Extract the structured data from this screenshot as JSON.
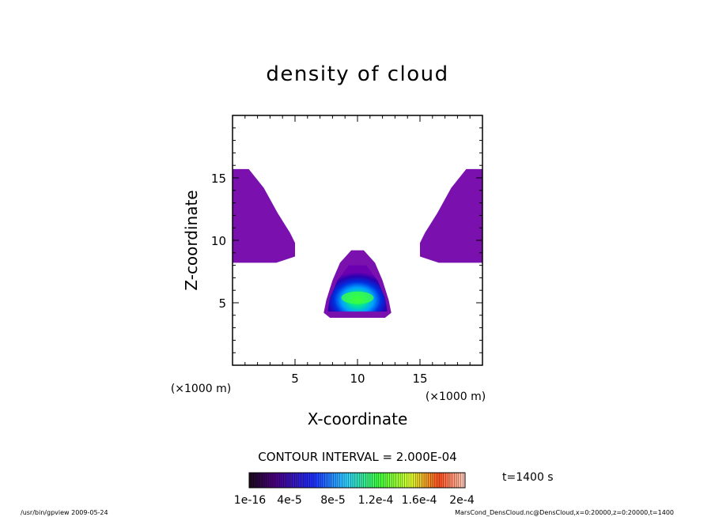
{
  "chart_data": {
    "type": "heatmap",
    "title": "density of cloud",
    "xlabel": "X-coordinate",
    "ylabel": "Z-coordinate",
    "x_unit": "(×1000 m)",
    "z_unit": "(×1000 m)",
    "xlim": [
      0,
      20
    ],
    "zlim": [
      0,
      20
    ],
    "x_ticks": [
      "5",
      "10",
      "15"
    ],
    "z_ticks": [
      "5",
      "10",
      "15"
    ],
    "contour_interval_text": "CONTOUR INTERVAL = 2.000E-04",
    "time_label": "t=1400 s",
    "colorbar_ticks": [
      "1e-16",
      "4e-5",
      "8e-5",
      "1.2e-4",
      "1.6e-4",
      "2e-4"
    ],
    "colorbar_range": [
      0,
      0.0002
    ],
    "colormap": [
      "#000000",
      "#4b0082",
      "#0000ff",
      "#00ffff",
      "#00ff00",
      "#ffff00",
      "#ff0000",
      "#ffffff"
    ],
    "regions": [
      {
        "name": "left upper lobe",
        "x_range": [
          0,
          5
        ],
        "z_range": [
          8.2,
          15.7
        ],
        "density": 1e-16
      },
      {
        "name": "right upper lobe",
        "x_range": [
          15,
          20
        ],
        "z_range": [
          8.2,
          15.7
        ],
        "density": 1e-16
      },
      {
        "name": "central cloud",
        "x_range": [
          7.5,
          12.5
        ],
        "z_range": [
          3.7,
          9.2
        ],
        "peak_density": 0.00012,
        "peak_x": 10,
        "peak_z": 5.4
      }
    ]
  },
  "footer": {
    "left": "/usr/bin/gpview   2009-05-24",
    "right": "MarsCond_DensCloud.nc@DensCloud,x=0:20000,z=0:20000,t=1400"
  }
}
